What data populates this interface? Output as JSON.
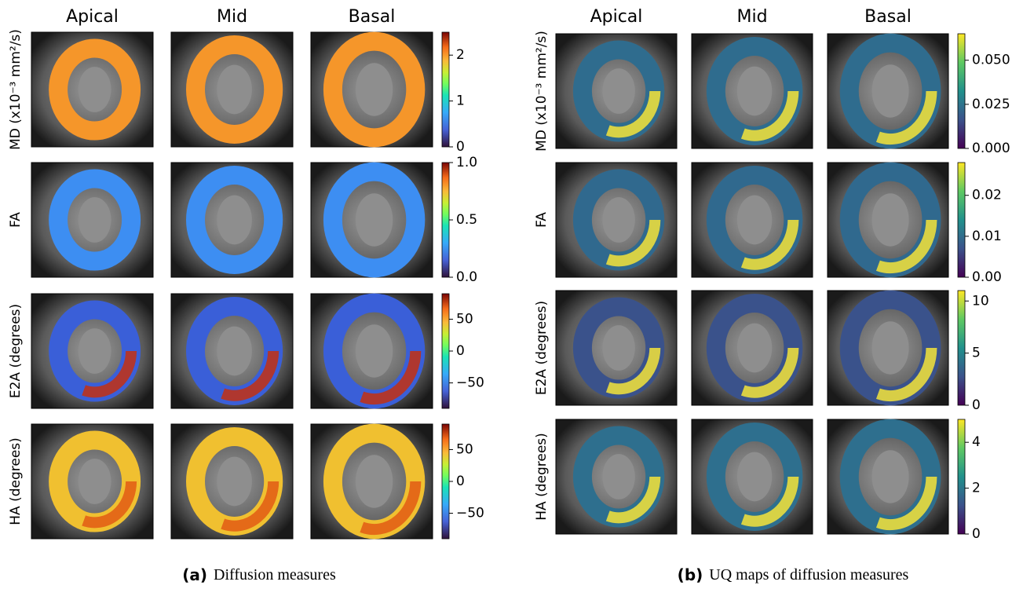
{
  "panels": [
    {
      "columns": [
        "Apical",
        "Mid",
        "Basal"
      ],
      "colormap": "turbo",
      "rows": [
        {
          "label": "MD (x10⁻³ mm²/s)",
          "lim": [
            0,
            2.5
          ],
          "ticks": [
            0,
            1,
            2
          ]
        },
        {
          "label": "FA",
          "lim": [
            0,
            1
          ],
          "ticks": [
            {
              "value": 0,
              "label": "0.0"
            },
            {
              "value": 0.5,
              "label": "0.5"
            },
            {
              "value": 1,
              "label": "1.0"
            }
          ]
        },
        {
          "label": "E2A (degrees)",
          "lim": [
            -90,
            90
          ],
          "ticks": [
            {
              "value": -50,
              "label": "−50"
            },
            0,
            50
          ]
        },
        {
          "label": "HA (degrees)",
          "lim": [
            -90,
            90
          ],
          "ticks": [
            {
              "value": -50,
              "label": "−50"
            },
            0,
            50
          ]
        }
      ],
      "caption_label": "(a)",
      "caption": "Diffusion measures"
    },
    {
      "columns": [
        "Apical",
        "Mid",
        "Basal"
      ],
      "colormap": "viridis",
      "rows": [
        {
          "label": "MD (x10⁻³ mm²/s)",
          "lim": [
            0,
            0.065
          ],
          "ticks": [
            {
              "value": 0,
              "label": "0.000"
            },
            {
              "value": 0.025,
              "label": "0.025"
            },
            {
              "value": 0.05,
              "label": "0.050"
            }
          ]
        },
        {
          "label": "FA",
          "lim": [
            0,
            0.028
          ],
          "ticks": [
            {
              "value": 0,
              "label": "0.00"
            },
            {
              "value": 0.01,
              "label": "0.01"
            },
            {
              "value": 0.02,
              "label": "0.02"
            }
          ]
        },
        {
          "label": "E2A (degrees)",
          "lim": [
            0,
            11
          ],
          "ticks": [
            0,
            5,
            10
          ]
        },
        {
          "label": "HA (degrees)",
          "lim": [
            0,
            5
          ],
          "ticks": [
            0,
            2,
            4
          ]
        }
      ],
      "caption_label": "(b)",
      "caption": "UQ maps of diffusion measures"
    }
  ]
}
